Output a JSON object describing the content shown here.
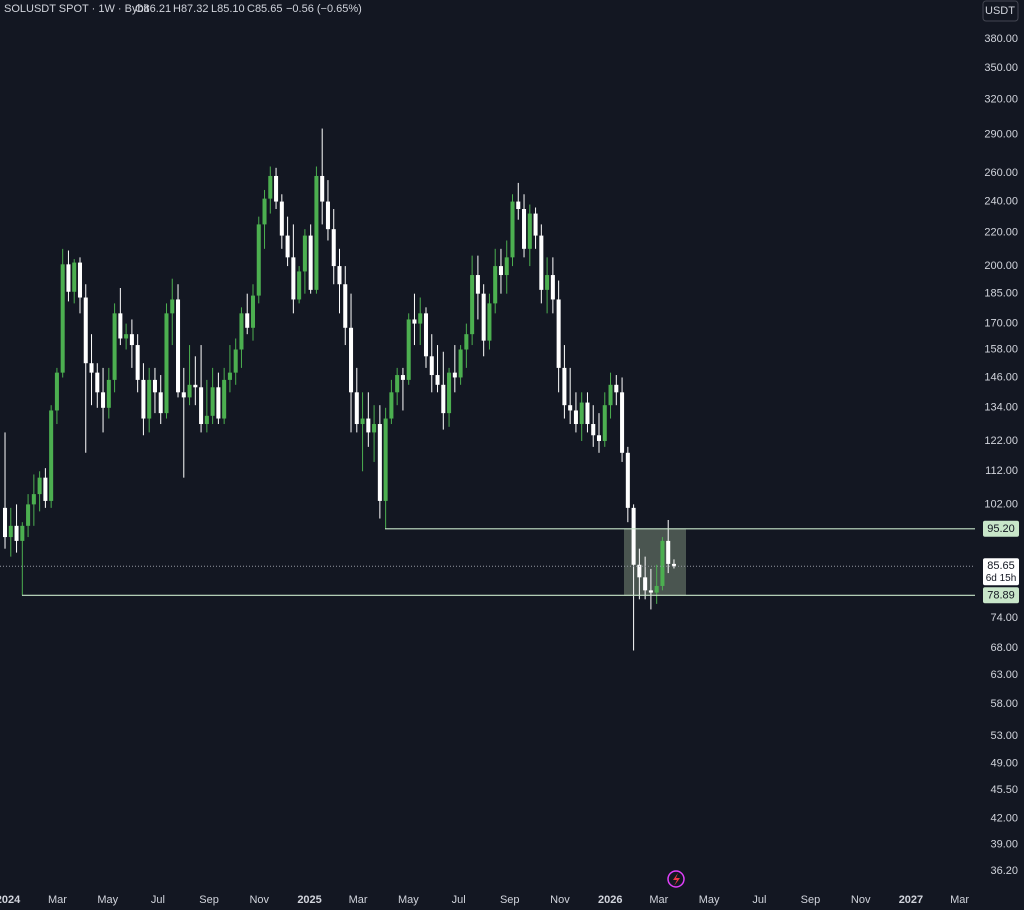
{
  "chart_data": {
    "type": "candlestick",
    "header": {
      "title": "SOLUSDT SPOT · 1W · Bybit",
      "ohlc": [
        "O86.21",
        "H87.32",
        "L85.10",
        "C85.65"
      ],
      "change": "−0.56 (−0.65%)"
    },
    "unit": "USDT",
    "log_scale": true,
    "colors": {
      "up": "#4caf50",
      "down": "#ffffff",
      "level": "#c8e6c9",
      "range_box": "#5d6b60"
    },
    "open": [
      101,
      93,
      96,
      92,
      96,
      102,
      105,
      110,
      103,
      133,
      148,
      201,
      186,
      202,
      183,
      152,
      148,
      140,
      134,
      145,
      175,
      163,
      165,
      160,
      145,
      130,
      145,
      140,
      132,
      175,
      182,
      140,
      138,
      143,
      142,
      128,
      131,
      142,
      130,
      145,
      148,
      158,
      175,
      168,
      184,
      225,
      242,
      258,
      240,
      218,
      205,
      182,
      197,
      218,
      187,
      258,
      240,
      222,
      200,
      190,
      168,
      140,
      128,
      130,
      125,
      128,
      103,
      130,
      140,
      147,
      145,
      172,
      170,
      175,
      155,
      147,
      143,
      132,
      148,
      146,
      158,
      165,
      195,
      185,
      162,
      180,
      200,
      195,
      205,
      240,
      235,
      210,
      232,
      218,
      187,
      195,
      182,
      150,
      135,
      133,
      128,
      136,
      128,
      124,
      122,
      135,
      143,
      140,
      118,
      101,
      86,
      83,
      80,
      79.5,
      81,
      92,
      86.21
    ],
    "high": [
      125,
      101,
      102,
      97,
      105,
      111,
      112,
      113,
      135,
      150,
      210,
      209,
      204,
      205,
      190,
      165,
      152,
      150,
      150,
      180,
      188,
      170,
      172,
      165,
      152,
      150,
      150,
      147,
      180,
      193,
      190,
      150,
      160,
      155,
      160,
      145,
      150,
      148,
      150,
      160,
      163,
      178,
      185,
      190,
      230,
      248,
      265,
      264,
      245,
      230,
      225,
      200,
      222,
      225,
      265,
      295,
      255,
      235,
      210,
      200,
      185,
      150,
      140,
      140,
      135,
      135,
      134,
      145,
      150,
      150,
      175,
      185,
      183,
      178,
      165,
      160,
      157,
      150,
      160,
      160,
      170,
      206,
      206,
      190,
      185,
      210,
      210,
      215,
      245,
      253,
      245,
      238,
      236,
      225,
      205,
      205,
      192,
      160,
      150,
      140,
      140,
      140,
      135,
      132,
      140,
      148,
      147,
      146,
      120,
      102,
      90,
      88,
      85,
      86,
      93,
      97.6,
      87.32
    ],
    "low": [
      90,
      88,
      89,
      78.89,
      93,
      96,
      100,
      101,
      101,
      128,
      146,
      181,
      180,
      175,
      118,
      135,
      134,
      125,
      130,
      140,
      160,
      158,
      150,
      140,
      124,
      125,
      132,
      128,
      130,
      160,
      138,
      110,
      135,
      135,
      125,
      125,
      128,
      128,
      128,
      140,
      143,
      150,
      165,
      162,
      180,
      210,
      232,
      235,
      210,
      200,
      175,
      180,
      185,
      185,
      185,
      225,
      215,
      190,
      175,
      160,
      125,
      125,
      112,
      120,
      115,
      98,
      95.2,
      128,
      135,
      133,
      143,
      160,
      160,
      150,
      140,
      140,
      126,
      127,
      140,
      143,
      150,
      160,
      172,
      155,
      158,
      175,
      185,
      185,
      200,
      228,
      205,
      200,
      210,
      180,
      175,
      175,
      140,
      130,
      128,
      125,
      122,
      125,
      120,
      118,
      120,
      130,
      135,
      115,
      97,
      67.5,
      78,
      78,
      75.8,
      77,
      80,
      84,
      85.1
    ],
    "close": [
      93,
      96,
      92,
      96,
      102,
      105,
      110,
      103,
      133,
      148,
      201,
      186,
      202,
      183,
      152,
      148,
      140,
      134,
      145,
      175,
      163,
      165,
      160,
      145,
      130,
      145,
      140,
      132,
      175,
      182,
      140,
      138,
      143,
      142,
      128,
      131,
      142,
      130,
      145,
      148,
      158,
      175,
      168,
      184,
      225,
      242,
      258,
      240,
      218,
      205,
      182,
      197,
      218,
      187,
      258,
      240,
      222,
      200,
      190,
      168,
      140,
      128,
      130,
      125,
      128,
      103,
      130,
      140,
      147,
      145,
      172,
      170,
      175,
      155,
      147,
      143,
      132,
      148,
      146,
      158,
      165,
      195,
      185,
      162,
      180,
      200,
      195,
      205,
      240,
      235,
      210,
      232,
      218,
      187,
      195,
      182,
      150,
      135,
      133,
      128,
      136,
      128,
      124,
      122,
      135,
      143,
      140,
      118,
      101,
      86,
      83,
      80,
      79.5,
      81,
      92,
      86.21,
      85.65
    ],
    "xlim": [
      -0.87,
      168.2
    ],
    "xticks": [
      {
        "value": 0.52,
        "label": "2024"
      },
      {
        "value": 9.09,
        "label": "Mar"
      },
      {
        "value": 17.81,
        "label": "May"
      },
      {
        "value": 26.52,
        "label": "Jul"
      },
      {
        "value": 35.38,
        "label": "Sep"
      },
      {
        "value": 44.09,
        "label": "Nov"
      },
      {
        "value": 52.81,
        "label": "2025"
      },
      {
        "value": 61.23,
        "label": "Mar"
      },
      {
        "value": 69.95,
        "label": "May"
      },
      {
        "value": 78.66,
        "label": "Jul"
      },
      {
        "value": 87.52,
        "label": "Sep"
      },
      {
        "value": 96.23,
        "label": "Nov"
      },
      {
        "value": 104.95,
        "label": "2026"
      },
      {
        "value": 113.38,
        "label": "Mar"
      },
      {
        "value": 122.09,
        "label": "May"
      },
      {
        "value": 130.81,
        "label": "Jul"
      },
      {
        "value": 139.66,
        "label": "Sep"
      },
      {
        "value": 148.38,
        "label": "Nov"
      },
      {
        "value": 157.09,
        "label": "2027"
      },
      {
        "value": 165.52,
        "label": "Mar"
      }
    ],
    "ylim": [
      34.5,
      424.2
    ],
    "yticks": [
      {
        "value": 380,
        "label": "380.00"
      },
      {
        "value": 350,
        "label": "350.00"
      },
      {
        "value": 320,
        "label": "320.00"
      },
      {
        "value": 290,
        "label": "290.00"
      },
      {
        "value": 260,
        "label": "260.00"
      },
      {
        "value": 240,
        "label": "240.00"
      },
      {
        "value": 220,
        "label": "220.00"
      },
      {
        "value": 200,
        "label": "200.00"
      },
      {
        "value": 185,
        "label": "185.00"
      },
      {
        "value": 170,
        "label": "170.00"
      },
      {
        "value": 158,
        "label": "158.00"
      },
      {
        "value": 146,
        "label": "146.00"
      },
      {
        "value": 134,
        "label": "134.00"
      },
      {
        "value": 122,
        "label": "122.00"
      },
      {
        "value": 112,
        "label": "112.00"
      },
      {
        "value": 102,
        "label": "102.00"
      },
      {
        "value": 74,
        "label": "74.00"
      },
      {
        "value": 68,
        "label": "68.00"
      },
      {
        "value": 63,
        "label": "63.00"
      },
      {
        "value": 58,
        "label": "58.00"
      },
      {
        "value": 53,
        "label": "53.00"
      },
      {
        "value": 49,
        "label": "49.00"
      },
      {
        "value": 45.5,
        "label": "45.50"
      },
      {
        "value": 42,
        "label": "42.00"
      },
      {
        "value": 39,
        "label": "39.00"
      },
      {
        "value": 36.2,
        "label": "36.20"
      }
    ],
    "levels": [
      {
        "value": 95.2,
        "label": "95.20"
      },
      {
        "value": 78.89,
        "label": "78.89"
      }
    ],
    "last_price": {
      "value": 85.65,
      "label": "85.65"
    },
    "countdown": "6d 15h"
  }
}
